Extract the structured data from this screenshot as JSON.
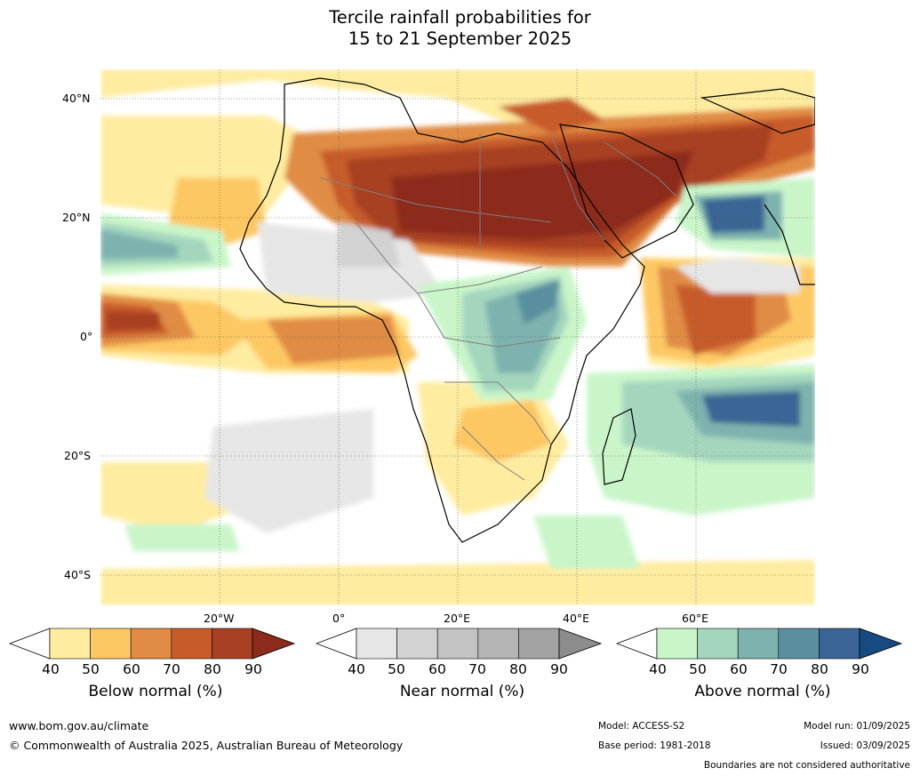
{
  "title": {
    "line1": "Tercile rainfall probabilities for",
    "line2": "15 to 21 September 2025"
  },
  "map": {
    "lat_labels": [
      "40°N",
      "20°N",
      "0°",
      "20°S",
      "40°S"
    ],
    "lon_labels": [
      "20°W",
      "0°",
      "20°E",
      "40°E",
      "60°E"
    ]
  },
  "legend": {
    "below": {
      "caption": "Below normal (%)",
      "ticks": [
        "40",
        "50",
        "60",
        "70",
        "80",
        "90"
      ],
      "colors": [
        "#ffffff",
        "#feeca0",
        "#fdc864",
        "#e08c44",
        "#c75b2c",
        "#a84124",
        "#8c2a1b"
      ]
    },
    "near": {
      "caption": "Near normal (%)",
      "ticks": [
        "40",
        "50",
        "60",
        "70",
        "80",
        "90"
      ],
      "colors": [
        "#ffffff",
        "#e6e6e6",
        "#d2d2d2",
        "#c3c3c3",
        "#b4b4b4",
        "#a3a3a3",
        "#8c8c8c"
      ]
    },
    "above": {
      "caption": "Above normal (%)",
      "ticks": [
        "40",
        "50",
        "60",
        "70",
        "80",
        "90"
      ],
      "colors": [
        "#ffffff",
        "#c9f5c9",
        "#a4d6be",
        "#7eb2ae",
        "#5a8f9f",
        "#3a6594",
        "#184a82"
      ]
    }
  },
  "footer": {
    "website": "www.bom.gov.au/climate",
    "copyright": "© Commonwealth of Australia 2025, Australian Bureau of Meteorology",
    "model": "Model: ACCESS-S2",
    "base_period": "Base period: 1981-2018",
    "model_run": "Model run: 01/09/2025",
    "issued": "Issued: 03/09/2025",
    "boundaries": "Boundaries are not considered authoritative"
  }
}
